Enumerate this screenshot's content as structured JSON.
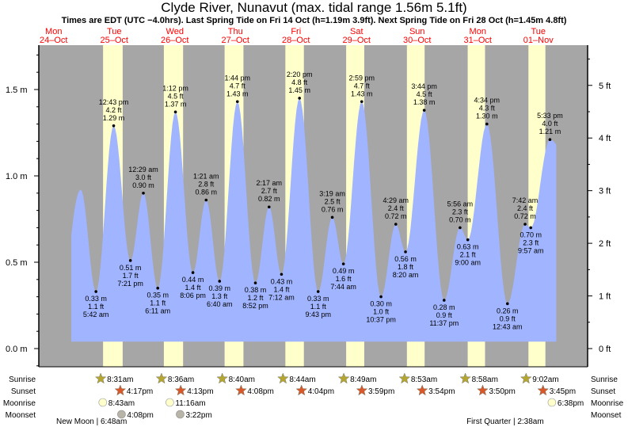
{
  "chart_data": {
    "type": "area",
    "title": "Clyde River, Nunavut (max. tidal range 1.56m 5.1ft)",
    "subtitle": "Times are EDT (UTC −4.0hrs). Last Spring Tide on Fri 14 Oct (h=1.19m 3.9ft). Next Spring Tide on Fri 28 Oct (h=1.45m 4.8ft)",
    "days": [
      {
        "dow": "Mon",
        "date": "24–Oct"
      },
      {
        "dow": "Tue",
        "date": "25–Oct"
      },
      {
        "dow": "Wed",
        "date": "26–Oct"
      },
      {
        "dow": "Thu",
        "date": "27–Oct"
      },
      {
        "dow": "Fri",
        "date": "28–Oct"
      },
      {
        "dow": "Sat",
        "date": "29–Oct"
      },
      {
        "dow": "Sun",
        "date": "30–Oct"
      },
      {
        "dow": "Mon",
        "date": "31–Oct"
      },
      {
        "dow": "Tue",
        "date": "01–Nov"
      }
    ],
    "y_left": {
      "unit": "m",
      "ticks": [
        "0.0 m",
        "0.5 m",
        "1.0 m",
        "1.5 m"
      ],
      "values": [
        0,
        0.5,
        1.0,
        1.5
      ],
      "range": [
        -0.1,
        1.75
      ]
    },
    "y_right": {
      "unit": "ft",
      "ticks": [
        "0 ft",
        "1 ft",
        "2 ft",
        "3 ft",
        "4 ft",
        "5 ft"
      ],
      "values": [
        0,
        1,
        2,
        3,
        4,
        5
      ]
    },
    "tides": [
      {
        "day": 1,
        "time": "5:42 am",
        "m": "0.33 m",
        "ft": "1.1 ft",
        "h": 0.33,
        "type": "low"
      },
      {
        "day": 1,
        "time": "12:43 pm",
        "m": "1.29 m",
        "ft": "4.2 ft",
        "h": 1.29,
        "type": "high"
      },
      {
        "day": 1,
        "time": "7:21 pm",
        "m": "0.51 m",
        "ft": "1.7 ft",
        "h": 0.51,
        "type": "low"
      },
      {
        "day": 2,
        "time": "12:29 am",
        "m": "0.90 m",
        "ft": "3.0 ft",
        "h": 0.9,
        "type": "high"
      },
      {
        "day": 2,
        "time": "6:11 am",
        "m": "0.35 m",
        "ft": "1.1 ft",
        "h": 0.35,
        "type": "low"
      },
      {
        "day": 2,
        "time": "1:12 pm",
        "m": "1.37 m",
        "ft": "4.5 ft",
        "h": 1.37,
        "type": "high"
      },
      {
        "day": 2,
        "time": "8:06 pm",
        "m": "0.44 m",
        "ft": "1.4 ft",
        "h": 0.44,
        "type": "low"
      },
      {
        "day": 3,
        "time": "1:21 am",
        "m": "0.86 m",
        "ft": "2.8 ft",
        "h": 0.86,
        "type": "high"
      },
      {
        "day": 3,
        "time": "6:40 am",
        "m": "0.39 m",
        "ft": "1.3 ft",
        "h": 0.39,
        "type": "low"
      },
      {
        "day": 3,
        "time": "1:44 pm",
        "m": "1.43 m",
        "ft": "4.7 ft",
        "h": 1.43,
        "type": "high"
      },
      {
        "day": 3,
        "time": "8:52 pm",
        "m": "0.38 m",
        "ft": "1.2 ft",
        "h": 0.38,
        "type": "low"
      },
      {
        "day": 4,
        "time": "2:17 am",
        "m": "0.82 m",
        "ft": "2.7 ft",
        "h": 0.82,
        "type": "high"
      },
      {
        "day": 4,
        "time": "7:12 am",
        "m": "0.43 m",
        "ft": "1.4 ft",
        "h": 0.43,
        "type": "low"
      },
      {
        "day": 4,
        "time": "2:20 pm",
        "m": "1.45 m",
        "ft": "4.8 ft",
        "h": 1.45,
        "type": "high"
      },
      {
        "day": 4,
        "time": "9:43 pm",
        "m": "0.33 m",
        "ft": "1.1 ft",
        "h": 0.33,
        "type": "low"
      },
      {
        "day": 5,
        "time": "3:19 am",
        "m": "0.76 m",
        "ft": "2.5 ft",
        "h": 0.76,
        "type": "high"
      },
      {
        "day": 5,
        "time": "7:44 am",
        "m": "0.49 m",
        "ft": "1.6 ft",
        "h": 0.49,
        "type": "low"
      },
      {
        "day": 5,
        "time": "2:59 pm",
        "m": "1.43 m",
        "ft": "4.7 ft",
        "h": 1.43,
        "type": "high"
      },
      {
        "day": 5,
        "time": "10:37 pm",
        "m": "0.30 m",
        "ft": "1.0 ft",
        "h": 0.3,
        "type": "low"
      },
      {
        "day": 6,
        "time": "4:29 am",
        "m": "0.72 m",
        "ft": "2.4 ft",
        "h": 0.72,
        "type": "high"
      },
      {
        "day": 6,
        "time": "8:20 am",
        "m": "0.56 m",
        "ft": "1.8 ft",
        "h": 0.56,
        "type": "low"
      },
      {
        "day": 6,
        "time": "3:44 pm",
        "m": "1.38 m",
        "ft": "4.5 ft",
        "h": 1.38,
        "type": "high"
      },
      {
        "day": 6,
        "time": "11:37 pm",
        "m": "0.28 m",
        "ft": "0.9 ft",
        "h": 0.28,
        "type": "low"
      },
      {
        "day": 7,
        "time": "5:56 am",
        "m": "0.70 m",
        "ft": "2.3 ft",
        "h": 0.7,
        "type": "high"
      },
      {
        "day": 7,
        "time": "9:00 am",
        "m": "0.63 m",
        "ft": "2.1 ft",
        "h": 0.63,
        "type": "low"
      },
      {
        "day": 7,
        "time": "4:34 pm",
        "m": "1.30 m",
        "ft": "4.3 ft",
        "h": 1.3,
        "type": "high"
      },
      {
        "day": 8,
        "time": "12:43 am",
        "m": "0.26 m",
        "ft": "0.9 ft",
        "h": 0.26,
        "type": "low"
      },
      {
        "day": 8,
        "time": "7:42 am",
        "m": "0.72 m",
        "ft": "2.4 ft",
        "h": 0.72,
        "type": "high"
      },
      {
        "day": 8,
        "time": "9:57 am",
        "m": "0.70 m",
        "ft": "2.3 ft",
        "h": 0.7,
        "type": "low"
      },
      {
        "day": 8,
        "time": "5:33 pm",
        "m": "1.21 m",
        "ft": "4.0 ft",
        "h": 1.21,
        "type": "high"
      }
    ],
    "row_labels": {
      "sunrise": "Sunrise",
      "sunset": "Sunset",
      "moonrise": "Moonrise",
      "moonset": "Moonset"
    },
    "sun": [
      {
        "day": 1,
        "rise": "8:31am",
        "set": "4:17pm"
      },
      {
        "day": 2,
        "rise": "8:36am",
        "set": "4:13pm"
      },
      {
        "day": 3,
        "rise": "8:40am",
        "set": "4:08pm"
      },
      {
        "day": 4,
        "rise": "8:44am",
        "set": "4:04pm"
      },
      {
        "day": 5,
        "rise": "8:49am",
        "set": "3:59pm"
      },
      {
        "day": 6,
        "rise": "8:53am",
        "set": "3:54pm"
      },
      {
        "day": 7,
        "rise": "8:58am",
        "set": "3:50pm"
      },
      {
        "day": 8,
        "rise": "9:02am",
        "set": "3:45pm"
      }
    ],
    "moonrise": [
      {
        "day": 1,
        "time": "8:43am"
      },
      {
        "day": 2,
        "time": "11:16am"
      },
      {
        "day": 8,
        "time": "6:38pm"
      }
    ],
    "moonset": [
      {
        "day": 1,
        "time": "4:08pm"
      },
      {
        "day": 2,
        "time": "3:22pm"
      }
    ],
    "phases": [
      {
        "label": "New Moon | 6:48am",
        "day": 1,
        "time": "6:48am"
      },
      {
        "label": "First Quarter | 2:38am",
        "day": 8,
        "time": "2:38am"
      }
    ],
    "colors": {
      "night": "#a6a6a6",
      "day": "#ffffcc",
      "water": "#a0b4ff",
      "dayLabel": "#ff0000",
      "sun": "#b5a632",
      "sunset": "#d8582a",
      "moonrise": "#ffffcc",
      "moonset": "#b8b4a8"
    }
  }
}
